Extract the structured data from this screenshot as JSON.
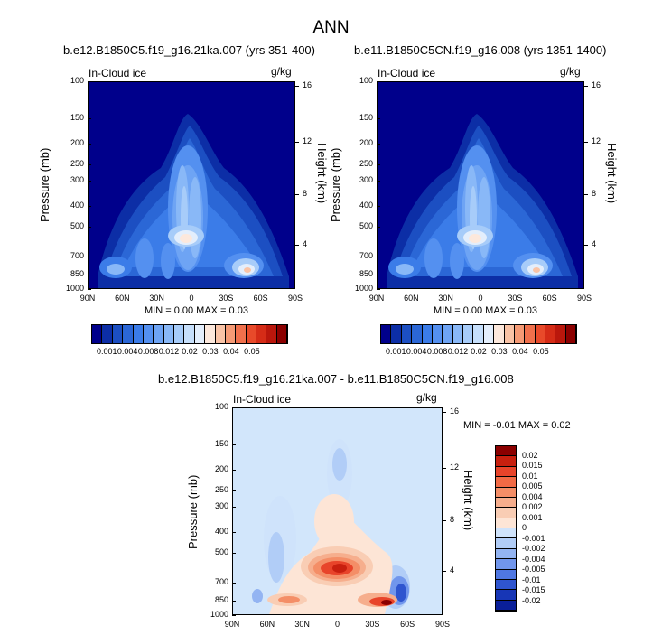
{
  "title": "ANN",
  "panels": [
    {
      "id": "p1",
      "title": "b.e12.B1850C5.f19_g16.21ka.007 (yrs 351-400)",
      "variable": "In-Cloud ice",
      "units": "g/kg",
      "minmax": "MIN =   0.00   MAX =   0.03"
    },
    {
      "id": "p2",
      "title": "b.e11.B1850C5CN.f19_g16.008 (yrs 1351-1400)",
      "variable": "In-Cloud ice",
      "units": "g/kg",
      "minmax": "MIN =   0.00   MAX =   0.03"
    },
    {
      "id": "p3",
      "title": "b.e12.B1850C5.f19_g16.21ka.007 - b.e11.B1850C5CN.f19_g16.008",
      "variable": "In-Cloud ice",
      "units": "g/kg",
      "minmax": "MIN =  -0.01   MAX =   0.02"
    }
  ],
  "chart_data": [
    {
      "type": "heatmap",
      "title": "b.e12.B1850C5.f19_g16.21ka.007 (yrs 351-400)",
      "subtitle": "In-Cloud ice",
      "units": "g/kg",
      "xlabel": "",
      "ylabel": "Pressure (mb)",
      "y2label": "Height (km)",
      "x_ticks": [
        "90N",
        "60N",
        "30N",
        "0",
        "30S",
        "60S",
        "90S"
      ],
      "y_ticks": [
        100,
        150,
        200,
        250,
        300,
        400,
        500,
        700,
        850,
        1000
      ],
      "y_scale": "log",
      "y2_ticks": [
        16,
        12,
        8,
        4
      ],
      "levels": [
        0.001,
        0.002,
        0.004,
        0.006,
        0.008,
        0.01,
        0.012,
        0.015,
        0.02,
        0.025,
        0.03,
        0.035,
        0.04,
        0.045,
        0.05
      ],
      "colorbar_labels": [
        "0.001",
        "0.004",
        "0.008",
        "0.012",
        "0.02",
        "0.03",
        "0.04",
        "0.05"
      ],
      "min": 0.0,
      "max": 0.03,
      "colors": [
        "#00008b",
        "#0c2ea6",
        "#1c4fc2",
        "#2b67d6",
        "#3b7ce8",
        "#5490f0",
        "#6ea4f4",
        "#89b8f7",
        "#a7ccf9",
        "#c6dffb",
        "#e3eefc",
        "#fce8dc",
        "#f9c3a6",
        "#f59a75",
        "#f0704c",
        "#e84a2a",
        "#d52c17",
        "#ba170c",
        "#8b0000"
      ]
    },
    {
      "type": "heatmap",
      "title": "b.e11.B1850C5CN.f19_g16.008 (yrs 1351-1400)",
      "subtitle": "In-Cloud ice",
      "units": "g/kg",
      "xlabel": "",
      "ylabel": "Pressure (mb)",
      "y2label": "Height (km)",
      "x_ticks": [
        "90N",
        "60N",
        "30N",
        "0",
        "30S",
        "60S",
        "90S"
      ],
      "y_ticks": [
        100,
        150,
        200,
        250,
        300,
        400,
        500,
        700,
        850,
        1000
      ],
      "y_scale": "log",
      "y2_ticks": [
        16,
        12,
        8,
        4
      ],
      "levels": [
        0.001,
        0.002,
        0.004,
        0.006,
        0.008,
        0.01,
        0.012,
        0.015,
        0.02,
        0.025,
        0.03,
        0.035,
        0.04,
        0.045,
        0.05
      ],
      "colorbar_labels": [
        "0.001",
        "0.004",
        "0.008",
        "0.012",
        "0.02",
        "0.03",
        "0.04",
        "0.05"
      ],
      "min": 0.0,
      "max": 0.03
    },
    {
      "type": "heatmap",
      "title": "b.e12.B1850C5.f19_g16.21ka.007 - b.e11.B1850C5CN.f19_g16.008",
      "subtitle": "In-Cloud ice",
      "units": "g/kg",
      "xlabel": "",
      "ylabel": "Pressure (mb)",
      "y2label": "Height (km)",
      "x_ticks": [
        "90N",
        "60N",
        "30N",
        "0",
        "30S",
        "60S",
        "90S"
      ],
      "y_ticks": [
        100,
        150,
        200,
        250,
        300,
        400,
        500,
        700,
        850,
        1000
      ],
      "y_scale": "log",
      "y2_ticks": [
        16,
        12,
        8,
        4
      ],
      "colorbar_labels": [
        "0.02",
        "0.015",
        "0.01",
        "0.005",
        "0.004",
        "0.002",
        "0.001",
        "0",
        "-0.001",
        "-0.002",
        "-0.004",
        "-0.005",
        "-0.01",
        "-0.015",
        "-0.02"
      ],
      "min": -0.01,
      "max": 0.02,
      "colors": [
        "#8b0000",
        "#c8200f",
        "#e8442a",
        "#f26a45",
        "#f48e67",
        "#f6ae8d",
        "#f9cdb4",
        "#fde5d6",
        "#cfe3fb",
        "#b1cdf7",
        "#93b4f2",
        "#7196ec",
        "#4f77e2",
        "#2f55cf",
        "#1736b6",
        "#0a1f99"
      ]
    }
  ]
}
